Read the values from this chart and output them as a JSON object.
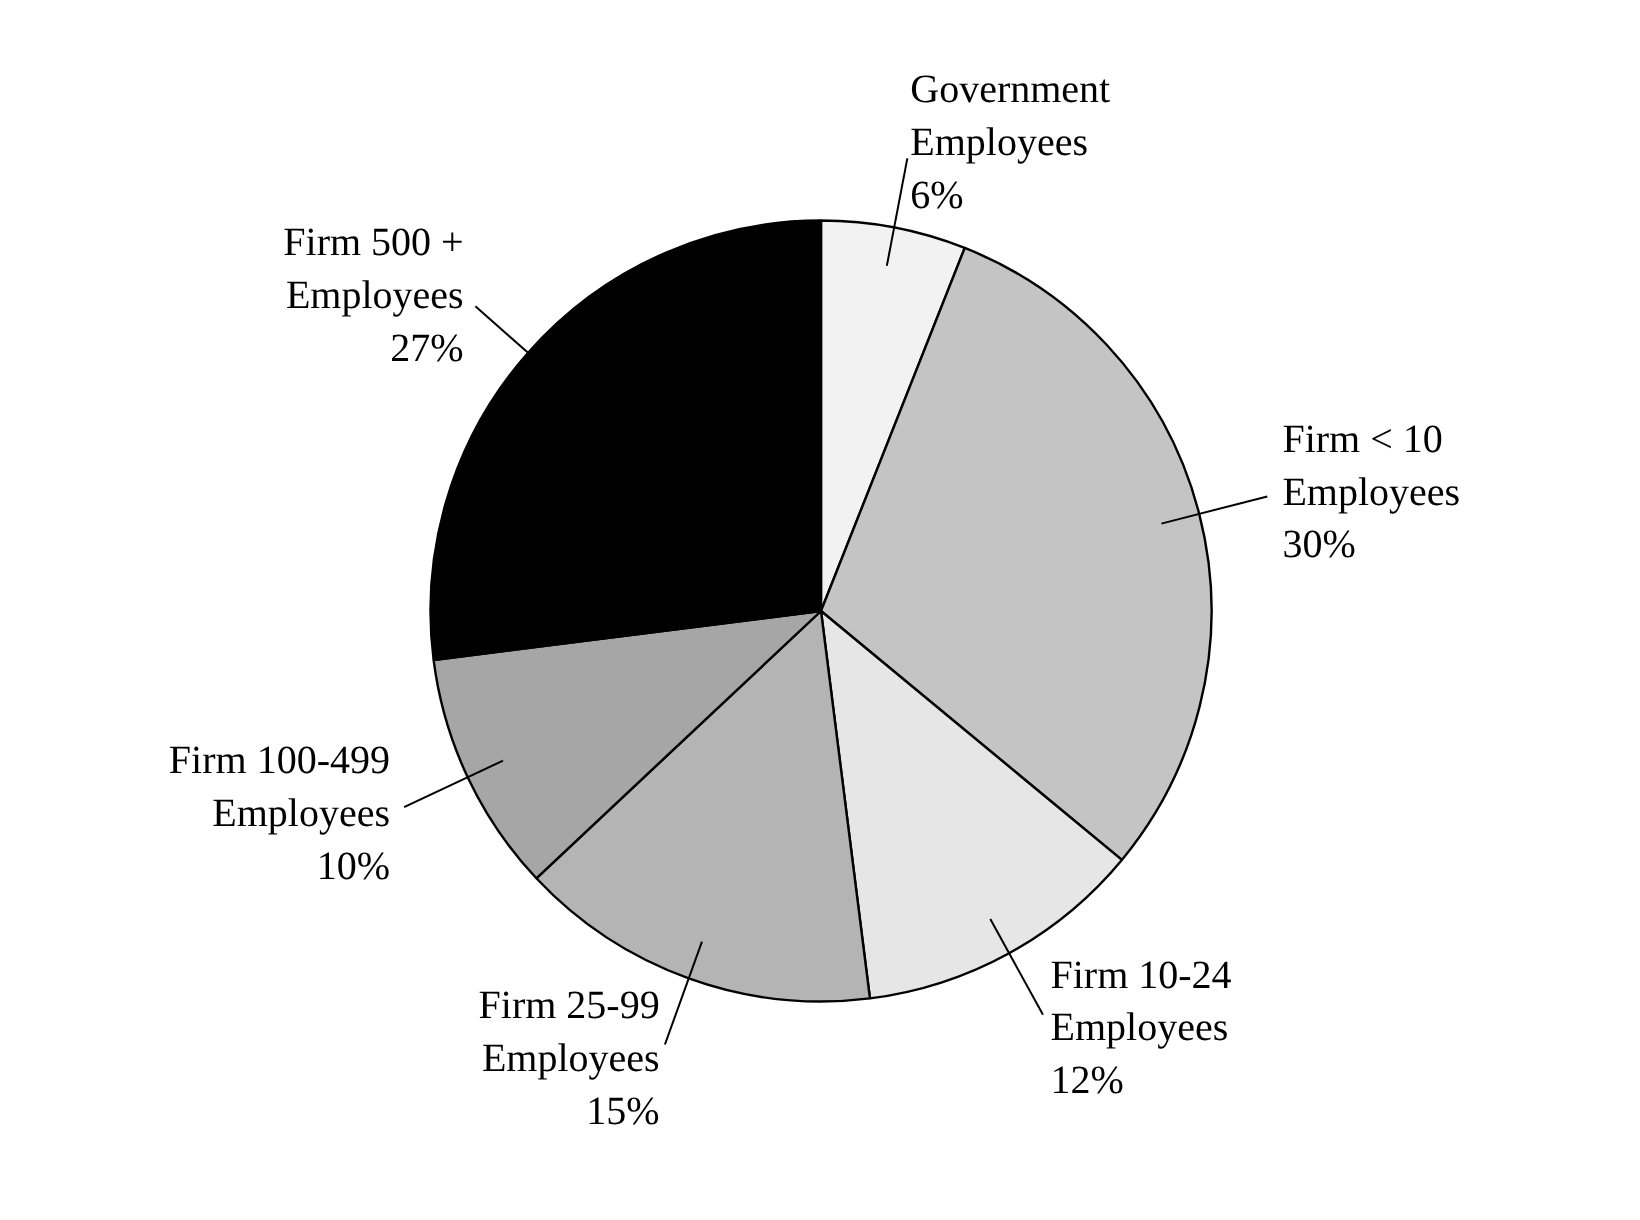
{
  "chart_data": {
    "type": "pie",
    "categories": [
      "Government\nEmployees",
      "Firm < 10\nEmployees",
      "Firm 10-24\nEmployees",
      "Firm 25-99\nEmployees",
      "Firm 100-499\nEmployees",
      "Firm 500 +\nEmployees"
    ],
    "values": [
      6,
      30,
      12,
      15,
      10,
      27
    ],
    "value_labels": [
      "6%",
      "30%",
      "12%",
      "15%",
      "10%",
      "27%"
    ],
    "colors": [
      "#f2f2f2",
      "#c4c4c4",
      "#e6e6e6",
      "#b4b4b4",
      "#a6a6a6",
      "#000000"
    ]
  }
}
